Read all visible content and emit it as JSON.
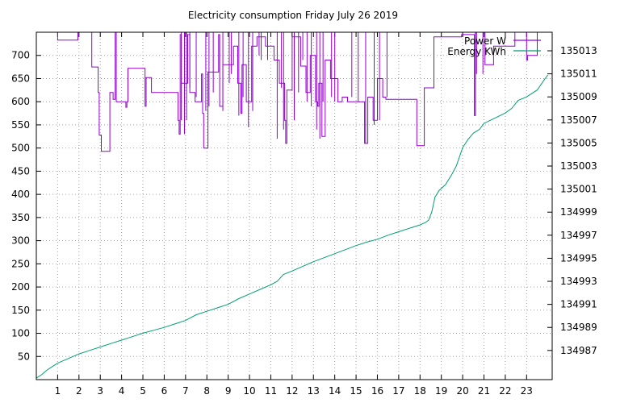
{
  "chart_data": {
    "type": "line",
    "title": "Electricity consumption Friday July 26 2019",
    "x": {
      "ticks": [
        1,
        2,
        3,
        4,
        5,
        6,
        7,
        8,
        9,
        10,
        11,
        12,
        13,
        14,
        15,
        16,
        17,
        18,
        19,
        20,
        21,
        22,
        23
      ],
      "range": [
        0,
        24.2
      ]
    },
    "y_left": {
      "ticks": [
        50,
        100,
        150,
        200,
        250,
        300,
        350,
        400,
        450,
        500,
        550,
        600,
        650,
        700
      ],
      "range": [
        0,
        750
      ]
    },
    "y_right": {
      "ticks": [
        134987,
        134989,
        134991,
        134993,
        134995,
        134997,
        134999,
        135001,
        135003,
        135005,
        135007,
        135009,
        135011,
        135013
      ],
      "range": [
        134984.47,
        135014.61
      ]
    },
    "grid": true,
    "legend_position": "top-right",
    "series": [
      {
        "name": "Power W",
        "axis": "left",
        "color": "#9400d3",
        "base": [
          [
            0.95,
            750
          ],
          [
            1.0,
            733
          ],
          [
            1.9,
            733
          ],
          [
            1.95,
            750
          ],
          [
            2.55,
            750
          ],
          [
            2.6,
            675
          ],
          [
            2.85,
            675
          ],
          [
            2.9,
            620
          ],
          [
            2.95,
            528
          ],
          [
            3.05,
            493
          ],
          [
            3.4,
            493
          ],
          [
            3.45,
            620
          ],
          [
            3.6,
            605
          ],
          [
            3.7,
            750
          ],
          [
            3.75,
            600
          ],
          [
            4.15,
            600
          ],
          [
            4.2,
            588
          ],
          [
            4.25,
            600
          ],
          [
            4.3,
            672
          ],
          [
            5.05,
            672
          ],
          [
            5.1,
            590
          ],
          [
            5.15,
            652
          ],
          [
            5.35,
            652
          ],
          [
            5.4,
            620
          ],
          [
            6.6,
            620
          ],
          [
            6.65,
            560
          ],
          [
            6.7,
            530
          ],
          [
            6.75,
            745
          ],
          [
            6.8,
            640
          ],
          [
            7.05,
            640
          ],
          [
            7.1,
            745
          ],
          [
            7.2,
            620
          ],
          [
            7.4,
            620
          ],
          [
            7.45,
            600
          ],
          [
            7.7,
            600
          ],
          [
            7.75,
            660
          ],
          [
            7.8,
            575
          ],
          [
            7.85,
            500
          ],
          [
            8.0,
            500
          ],
          [
            8.05,
            664
          ],
          [
            8.5,
            664
          ],
          [
            8.55,
            745
          ],
          [
            8.6,
            590
          ],
          [
            8.7,
            590
          ],
          [
            8.75,
            680
          ],
          [
            9.2,
            680
          ],
          [
            9.25,
            720
          ],
          [
            9.4,
            720
          ],
          [
            9.45,
            640
          ],
          [
            9.55,
            640
          ],
          [
            9.6,
            575
          ],
          [
            9.65,
            680
          ],
          [
            9.8,
            680
          ],
          [
            9.85,
            600
          ],
          [
            10.05,
            600
          ],
          [
            10.1,
            720
          ],
          [
            10.3,
            720
          ],
          [
            10.35,
            740
          ],
          [
            10.7,
            740
          ],
          [
            10.75,
            720
          ],
          [
            11.1,
            720
          ],
          [
            11.15,
            690
          ],
          [
            11.35,
            690
          ],
          [
            11.4,
            640
          ],
          [
            11.6,
            640
          ],
          [
            11.65,
            560
          ],
          [
            11.7,
            510
          ],
          [
            11.75,
            625
          ],
          [
            11.95,
            625
          ],
          [
            12.0,
            740
          ],
          [
            12.35,
            740
          ],
          [
            12.4,
            677
          ],
          [
            12.6,
            677
          ],
          [
            12.65,
            620
          ],
          [
            12.8,
            620
          ],
          [
            12.85,
            700
          ],
          [
            13.05,
            700
          ],
          [
            13.1,
            600
          ],
          [
            13.2,
            590
          ],
          [
            13.25,
            640
          ],
          [
            13.35,
            640
          ],
          [
            13.4,
            525
          ],
          [
            13.5,
            525
          ],
          [
            13.55,
            690
          ],
          [
            13.75,
            690
          ],
          [
            13.8,
            650
          ],
          [
            14.1,
            650
          ],
          [
            14.15,
            600
          ],
          [
            14.3,
            600
          ],
          [
            14.35,
            610
          ],
          [
            14.55,
            610
          ],
          [
            14.6,
            600
          ],
          [
            15.35,
            600
          ],
          [
            15.4,
            510
          ],
          [
            15.5,
            510
          ],
          [
            15.55,
            610
          ],
          [
            15.75,
            610
          ],
          [
            15.8,
            560
          ],
          [
            15.95,
            560
          ],
          [
            16.0,
            650
          ],
          [
            16.2,
            650
          ],
          [
            16.25,
            610
          ],
          [
            16.35,
            610
          ],
          [
            16.4,
            605
          ],
          [
            17.8,
            605
          ],
          [
            17.85,
            505
          ],
          [
            18.15,
            505
          ],
          [
            18.2,
            630
          ],
          [
            18.6,
            630
          ],
          [
            18.65,
            740
          ],
          [
            19.9,
            740
          ],
          [
            19.95,
            745
          ],
          [
            20.5,
            745
          ],
          [
            20.55,
            570
          ],
          [
            20.6,
            750
          ],
          [
            21.0,
            750
          ],
          [
            21.05,
            680
          ],
          [
            21.4,
            680
          ],
          [
            21.45,
            720
          ],
          [
            22.4,
            720
          ],
          [
            22.45,
            750
          ],
          [
            22.95,
            750
          ],
          [
            23.0,
            690
          ],
          [
            23.05,
            700
          ],
          [
            23.45,
            700
          ],
          [
            23.5,
            750
          ]
        ],
        "spikes": [
          [
            6.8,
            560
          ],
          [
            6.95,
            530
          ],
          [
            7.05,
            560
          ],
          [
            7.2,
            630
          ],
          [
            7.5,
            610
          ],
          [
            7.95,
            580
          ],
          [
            8.1,
            590
          ],
          [
            8.3,
            620
          ],
          [
            8.75,
            580
          ],
          [
            9.05,
            640
          ],
          [
            9.15,
            660
          ],
          [
            9.5,
            570
          ],
          [
            9.7,
            610
          ],
          [
            9.95,
            545
          ],
          [
            10.15,
            580
          ],
          [
            10.45,
            700
          ],
          [
            10.55,
            690
          ],
          [
            10.85,
            690
          ],
          [
            11.3,
            520
          ],
          [
            11.5,
            630
          ],
          [
            11.6,
            540
          ],
          [
            12.1,
            560
          ],
          [
            12.3,
            620
          ],
          [
            12.5,
            690
          ],
          [
            12.7,
            600
          ],
          [
            12.9,
            590
          ],
          [
            13.15,
            540
          ],
          [
            13.3,
            520
          ],
          [
            13.45,
            600
          ],
          [
            13.85,
            610
          ],
          [
            14.0,
            600
          ],
          [
            14.8,
            610
          ],
          [
            15.1,
            600
          ],
          [
            15.45,
            510
          ],
          [
            15.85,
            550
          ],
          [
            16.1,
            560
          ],
          [
            16.45,
            610
          ],
          [
            20.6,
            570
          ],
          [
            20.65,
            660
          ],
          [
            20.95,
            660
          ]
        ]
      },
      {
        "name": "Energy KWh",
        "axis": "right",
        "color": "#009e73",
        "points": [
          [
            0,
            134984.6
          ],
          [
            0.25,
            134984.9
          ],
          [
            0.5,
            134985.3
          ],
          [
            0.75,
            134985.6
          ],
          [
            1.0,
            134985.9
          ],
          [
            1.5,
            134986.3
          ],
          [
            2.0,
            134986.7
          ],
          [
            2.5,
            134987.0
          ],
          [
            3.0,
            134987.3
          ],
          [
            3.5,
            134987.6
          ],
          [
            4.0,
            134987.9
          ],
          [
            4.5,
            134988.2
          ],
          [
            5.0,
            134988.5
          ],
          [
            5.5,
            134988.75
          ],
          [
            6.0,
            134989.0
          ],
          [
            6.5,
            134989.3
          ],
          [
            7.0,
            134989.6
          ],
          [
            7.5,
            134990.1
          ],
          [
            8.0,
            134990.4
          ],
          [
            8.5,
            134990.7
          ],
          [
            9.0,
            134991.0
          ],
          [
            9.5,
            134991.5
          ],
          [
            10.0,
            134991.9
          ],
          [
            10.5,
            134992.3
          ],
          [
            11.0,
            134992.7
          ],
          [
            11.3,
            134993.0
          ],
          [
            11.6,
            134993.6
          ],
          [
            12.0,
            134993.9
          ],
          [
            12.5,
            134994.3
          ],
          [
            13.0,
            134994.7
          ],
          [
            13.5,
            134995.05
          ],
          [
            14.0,
            134995.4
          ],
          [
            14.5,
            134995.75
          ],
          [
            15.0,
            134996.1
          ],
          [
            15.5,
            134996.4
          ],
          [
            16.0,
            134996.65
          ],
          [
            16.5,
            134997.0
          ],
          [
            17.0,
            134997.3
          ],
          [
            17.5,
            134997.6
          ],
          [
            18.0,
            134997.9
          ],
          [
            18.25,
            134998.1
          ],
          [
            18.4,
            134998.3
          ],
          [
            18.55,
            134999.0
          ],
          [
            18.7,
            135000.3
          ],
          [
            18.9,
            135000.9
          ],
          [
            19.2,
            135001.4
          ],
          [
            19.5,
            135002.3
          ],
          [
            19.7,
            135003.0
          ],
          [
            20.0,
            135004.6
          ],
          [
            20.25,
            135005.3
          ],
          [
            20.5,
            135005.85
          ],
          [
            20.8,
            135006.2
          ],
          [
            21.0,
            135006.7
          ],
          [
            21.5,
            135007.15
          ],
          [
            22.0,
            135007.6
          ],
          [
            22.3,
            135008.0
          ],
          [
            22.6,
            135008.7
          ],
          [
            23.0,
            135009.0
          ],
          [
            23.5,
            135009.6
          ],
          [
            23.85,
            135010.55
          ],
          [
            24.0,
            135010.9
          ]
        ]
      }
    ]
  }
}
